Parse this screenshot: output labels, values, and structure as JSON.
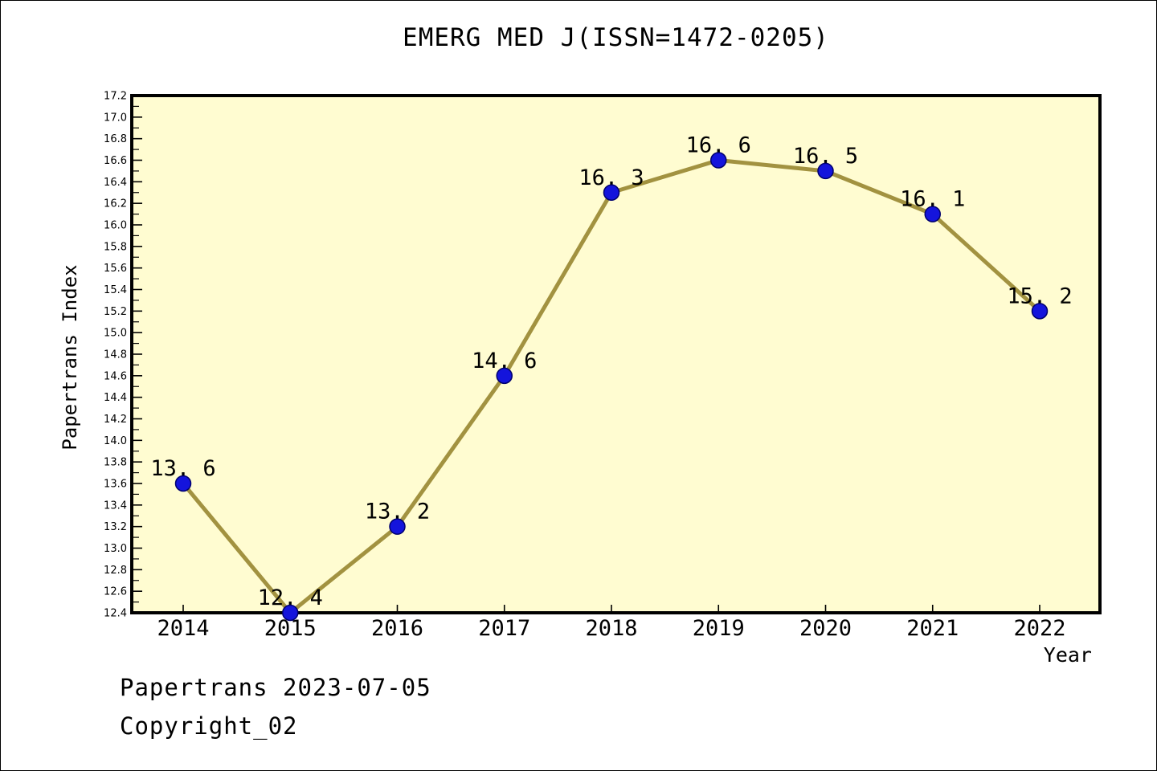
{
  "title": "EMERG MED J(ISSN=1472-0205)",
  "footer": {
    "line1": "Papertrans 2023-07-05",
    "line2": "Copyright_02"
  },
  "chart_data": {
    "type": "line",
    "title": "EMERG MED J(ISSN=1472-0205)",
    "xlabel": "Year",
    "ylabel": "Papertrans Index",
    "categories": [
      "2014",
      "2015",
      "2016",
      "2017",
      "2018",
      "2019",
      "2020",
      "2021",
      "2022"
    ],
    "series": [
      {
        "name": "Papertrans Index",
        "values": [
          13.6,
          12.4,
          13.2,
          14.6,
          16.3,
          16.6,
          16.5,
          16.1,
          15.2
        ]
      }
    ],
    "point_labels": [
      "13. 6",
      "12. 4",
      "13. 2",
      "14. 6",
      "16. 3",
      "16. 6",
      "16. 5",
      "16. 1",
      "15. 2"
    ],
    "ylim": [
      12.4,
      17.2
    ],
    "ytick_step": 0.2,
    "yminor_step": 0.1,
    "grid": false,
    "legend_position": "none",
    "colors": {
      "line": "#A29240",
      "marker_fill": "#1414DC",
      "marker_edge": "#00006E",
      "plot_background": "#FFFCD1",
      "axis": "#000000",
      "text": "#000000"
    }
  }
}
